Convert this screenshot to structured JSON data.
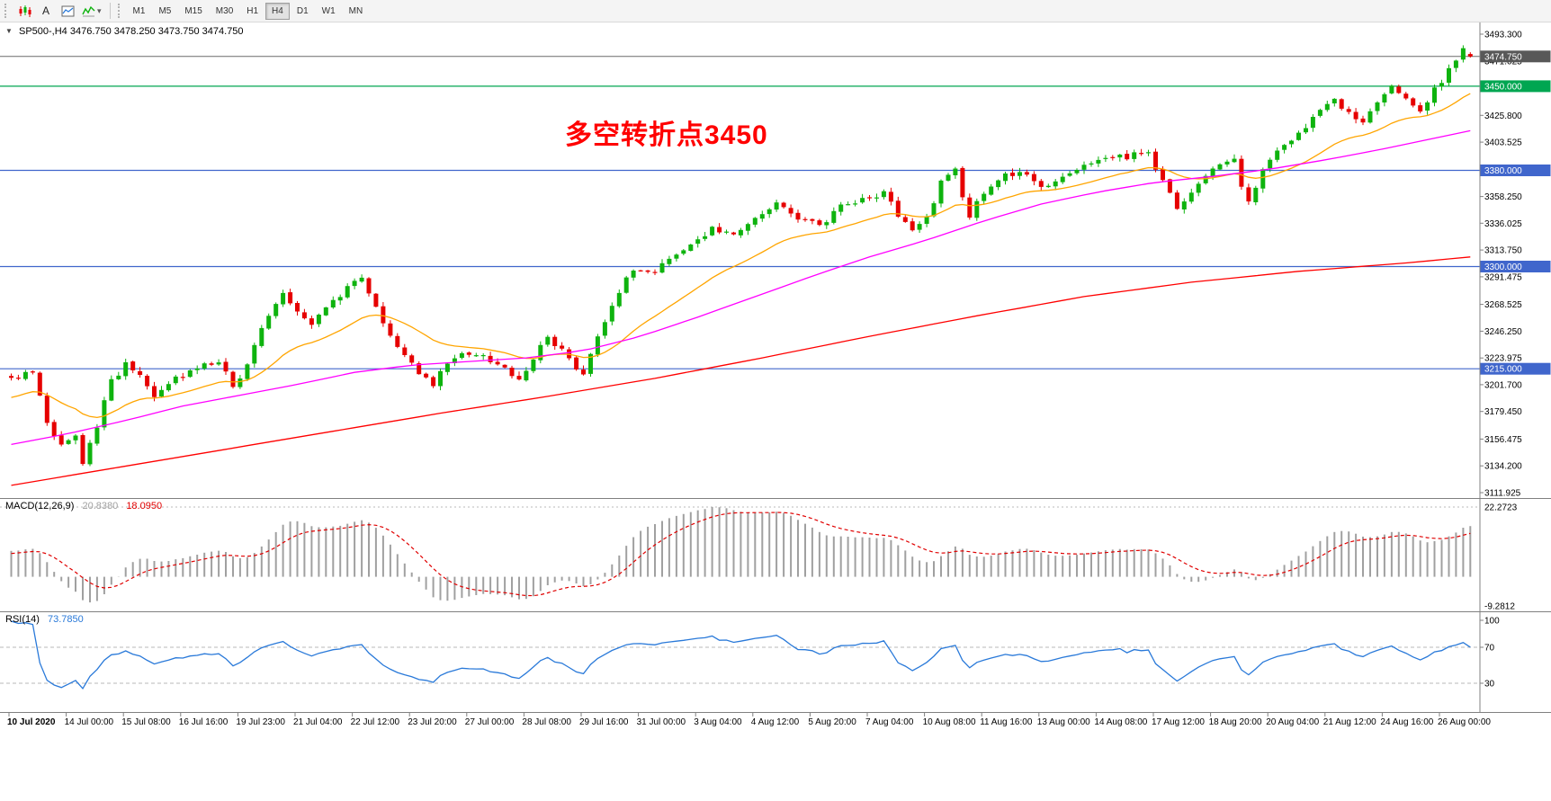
{
  "toolbar": {
    "text_tool_label": "A",
    "timeframes": [
      "M1",
      "M5",
      "M15",
      "M30",
      "H1",
      "H4",
      "D1",
      "W1",
      "MN"
    ],
    "active_timeframe": "H4",
    "icons": [
      "candlestick-chart-icon",
      "text-tool-icon",
      "template-icon",
      "indicators-icon",
      "dropdown-arrow-icon"
    ]
  },
  "chart": {
    "title_symbol": "SP500-,H4",
    "title_ohlc": "3476.750 3478.250 3473.750 3474.750"
  },
  "chart_data": {
    "type": "candlestick",
    "symbol": "SP500-",
    "timeframe": "H4",
    "current_ohlc": {
      "open": 3476.75,
      "high": 3478.25,
      "low": 3473.75,
      "close": 3474.75
    },
    "price_axis": {
      "min": 3111.925,
      "max": 3493.3,
      "ticks": [
        "3493.300",
        "3471.025",
        "3448.750",
        "3425.800",
        "3403.525",
        "3381.250",
        "3358.250",
        "3336.025",
        "3313.750",
        "3291.475",
        "3268.525",
        "3246.250",
        "3223.975",
        "3201.700",
        "3179.450",
        "3156.475",
        "3134.200",
        "3111.925"
      ]
    },
    "time_axis": [
      "10 Jul 2020",
      "14 Jul 00:00",
      "15 Jul 08:00",
      "16 Jul 16:00",
      "19 Jul 23:00",
      "21 Jul 04:00",
      "22 Jul 12:00",
      "23 Jul 20:00",
      "27 Jul 00:00",
      "28 Jul 08:00",
      "29 Jul 16:00",
      "31 Jul 00:00",
      "3 Aug 04:00",
      "4 Aug 12:00",
      "5 Aug 20:00",
      "7 Aug 04:00",
      "10 Aug 08:00",
      "11 Aug 16:00",
      "13 Aug 00:00",
      "14 Aug 08:00",
      "17 Aug 12:00",
      "18 Aug 20:00",
      "20 Aug 04:00",
      "21 Aug 12:00",
      "24 Aug 16:00",
      "26 Aug 00:00"
    ],
    "levels": [
      {
        "price": 3474.75,
        "label": "3474.750",
        "type": "current-price",
        "color": "#6B6B6B"
      },
      {
        "price": 3450.0,
        "label": "3450.000",
        "type": "horizontal-line",
        "color": "#00A651"
      },
      {
        "price": 3380.0,
        "label": "3380.000",
        "type": "horizontal-line",
        "color": "#4066CC"
      },
      {
        "price": 3300.0,
        "label": "3300.000",
        "type": "horizontal-line",
        "color": "#4066CC"
      },
      {
        "price": 3215.0,
        "label": "3215.000",
        "type": "horizontal-line",
        "color": "#4066CC"
      }
    ],
    "bars": 205,
    "close_anchors": [
      [
        0,
        3205
      ],
      [
        3,
        3212
      ],
      [
        5,
        3172
      ],
      [
        7,
        3150
      ],
      [
        9,
        3158
      ],
      [
        10,
        3138
      ],
      [
        12,
        3168
      ],
      [
        14,
        3205
      ],
      [
        16,
        3218
      ],
      [
        18,
        3208
      ],
      [
        20,
        3193
      ],
      [
        23,
        3206
      ],
      [
        26,
        3216
      ],
      [
        29,
        3222
      ],
      [
        31,
        3199
      ],
      [
        33,
        3216
      ],
      [
        35,
        3248
      ],
      [
        38,
        3276
      ],
      [
        40,
        3262
      ],
      [
        42,
        3252
      ],
      [
        45,
        3270
      ],
      [
        47,
        3283
      ],
      [
        49,
        3289
      ],
      [
        51,
        3268
      ],
      [
        53,
        3242
      ],
      [
        55,
        3229
      ],
      [
        57,
        3211
      ],
      [
        59,
        3203
      ],
      [
        61,
        3219
      ],
      [
        63,
        3229
      ],
      [
        66,
        3224
      ],
      [
        69,
        3214
      ],
      [
        71,
        3204
      ],
      [
        73,
        3223
      ],
      [
        75,
        3243
      ],
      [
        77,
        3229
      ],
      [
        79,
        3217
      ],
      [
        80,
        3209
      ],
      [
        82,
        3243
      ],
      [
        84,
        3269
      ],
      [
        86,
        3289
      ],
      [
        88,
        3299
      ],
      [
        90,
        3296
      ],
      [
        92,
        3306
      ],
      [
        95,
        3321
      ],
      [
        98,
        3331
      ],
      [
        101,
        3327
      ],
      [
        104,
        3343
      ],
      [
        107,
        3351
      ],
      [
        110,
        3341
      ],
      [
        113,
        3334
      ],
      [
        116,
        3351
      ],
      [
        119,
        3357
      ],
      [
        122,
        3361
      ],
      [
        124,
        3344
      ],
      [
        126,
        3329
      ],
      [
        128,
        3341
      ],
      [
        130,
        3369
      ],
      [
        132,
        3381
      ],
      [
        133,
        3359
      ],
      [
        134,
        3343
      ],
      [
        136,
        3361
      ],
      [
        138,
        3373
      ],
      [
        141,
        3379
      ],
      [
        144,
        3367
      ],
      [
        147,
        3375
      ],
      [
        150,
        3383
      ],
      [
        153,
        3389
      ],
      [
        156,
        3391
      ],
      [
        159,
        3395
      ],
      [
        161,
        3371
      ],
      [
        163,
        3347
      ],
      [
        165,
        3361
      ],
      [
        167,
        3376
      ],
      [
        169,
        3383
      ],
      [
        171,
        3387
      ],
      [
        172,
        3365
      ],
      [
        173,
        3355
      ],
      [
        175,
        3381
      ],
      [
        177,
        3396
      ],
      [
        179,
        3406
      ],
      [
        181,
        3416
      ],
      [
        183,
        3429
      ],
      [
        185,
        3439
      ],
      [
        187,
        3429
      ],
      [
        189,
        3421
      ],
      [
        191,
        3437
      ],
      [
        193,
        3448
      ],
      [
        195,
        3441
      ],
      [
        197,
        3429
      ],
      [
        199,
        3447
      ],
      [
        201,
        3463
      ],
      [
        203,
        3481
      ],
      [
        204,
        3475
      ]
    ],
    "moving_averages": [
      {
        "name": "ma-fast",
        "color": "#FFA500",
        "period": 21,
        "source": "ema-close"
      },
      {
        "name": "ma-mid",
        "color": "#FF00FF",
        "anchors": [
          [
            0,
            3152
          ],
          [
            8,
            3161
          ],
          [
            16,
            3172
          ],
          [
            24,
            3184
          ],
          [
            32,
            3193
          ],
          [
            40,
            3202
          ],
          [
            48,
            3212
          ],
          [
            56,
            3218
          ],
          [
            64,
            3221
          ],
          [
            72,
            3224
          ],
          [
            80,
            3230
          ],
          [
            88,
            3242
          ],
          [
            96,
            3258
          ],
          [
            104,
            3275
          ],
          [
            112,
            3292
          ],
          [
            120,
            3308
          ],
          [
            128,
            3322
          ],
          [
            136,
            3338
          ],
          [
            144,
            3352
          ],
          [
            152,
            3362
          ],
          [
            160,
            3370
          ],
          [
            168,
            3375
          ],
          [
            176,
            3381
          ],
          [
            184,
            3389
          ],
          [
            192,
            3398
          ],
          [
            200,
            3408
          ],
          [
            204,
            3413
          ]
        ]
      },
      {
        "name": "ma-slow",
        "color": "#FF0000",
        "anchors": [
          [
            0,
            3118
          ],
          [
            15,
            3133
          ],
          [
            30,
            3148
          ],
          [
            45,
            3163
          ],
          [
            60,
            3178
          ],
          [
            75,
            3192
          ],
          [
            90,
            3207
          ],
          [
            105,
            3224
          ],
          [
            120,
            3242
          ],
          [
            135,
            3259
          ],
          [
            150,
            3275
          ],
          [
            165,
            3287
          ],
          [
            180,
            3296
          ],
          [
            195,
            3303
          ],
          [
            204,
            3308
          ]
        ]
      }
    ],
    "indicators": {
      "macd": {
        "name": "MACD(12,26,9)",
        "main_value": "20.8380",
        "signal_value": "18.0950",
        "axis_max": 22.2723,
        "axis_min": -9.2812,
        "fast": 12,
        "slow": 26,
        "signal": 9
      },
      "rsi": {
        "name": "RSI(14)",
        "value": "73.7850",
        "period": 14,
        "axis_ticks": [
          100,
          70,
          30
        ],
        "levels": [
          70,
          30
        ]
      }
    },
    "annotation": {
      "text": "多空转折点3450",
      "color": "#FF0000"
    }
  },
  "colors": {
    "bull": "#0EB30E",
    "bear": "#E60000",
    "ma_fast": "#FFA500",
    "ma_mid": "#FF00FF",
    "ma_slow": "#FF0000",
    "level_green": "#00A651",
    "level_blue": "#4066CC",
    "price_line": "#6B6B6B",
    "price_label_bg": "#585858",
    "macd_hist": "#A0A0A0",
    "macd_signal": "#E00000",
    "rsi_line": "#2979D9",
    "annotation": "#FF0000",
    "axis_text": "#000000",
    "separator": "#808080",
    "toolbar_bg": "#F4F4F4"
  }
}
